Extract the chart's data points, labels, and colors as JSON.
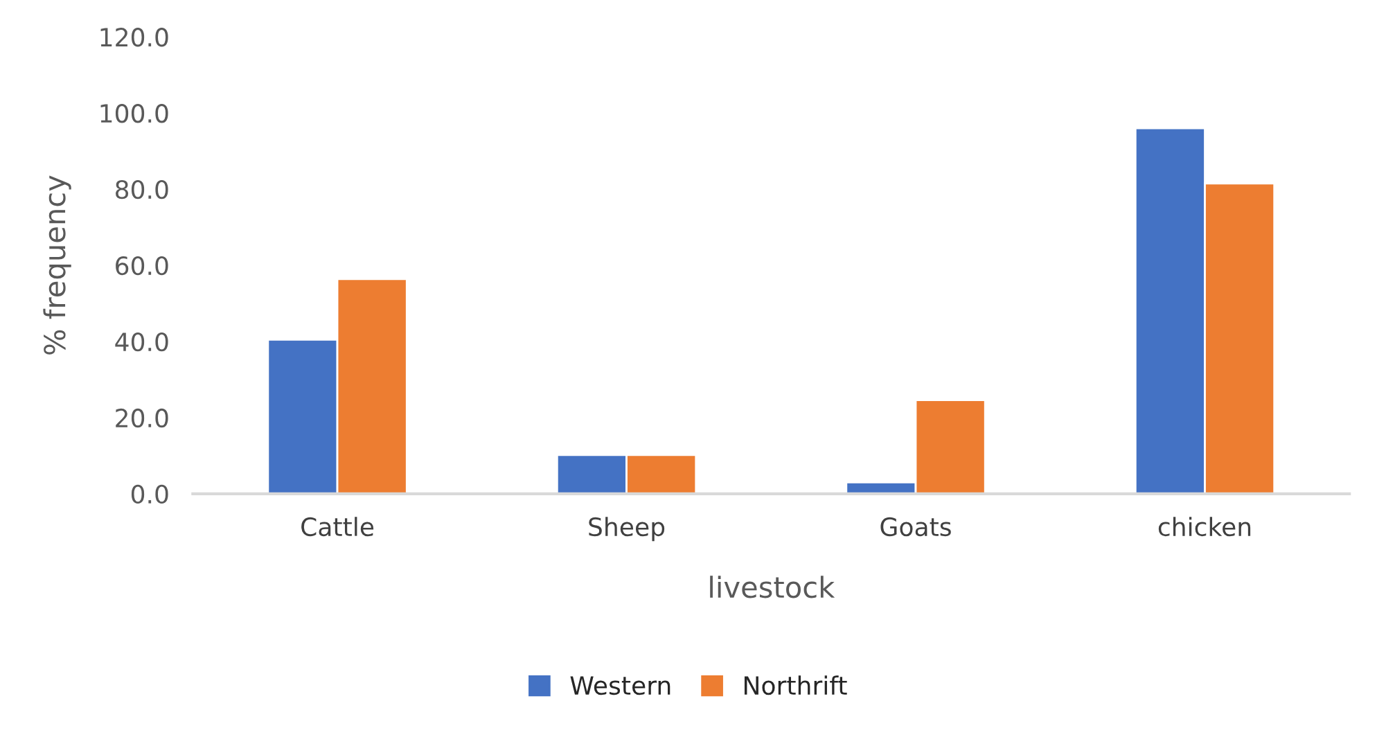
{
  "chart_data": {
    "type": "bar",
    "xlabel": "livestock",
    "ylabel": "% frequency",
    "categories": [
      "Cattle",
      "Sheep",
      "Goats",
      "chicken"
    ],
    "series": [
      {
        "name": "Western",
        "color": "#4472c4",
        "values": [
          40.5,
          10.2,
          3.0,
          96.0
        ]
      },
      {
        "name": "Northrift",
        "color": "#ed7d31",
        "values": [
          56.4,
          10.2,
          24.6,
          81.5
        ]
      }
    ],
    "ylim": [
      0,
      120
    ],
    "yticks": [
      {
        "value": 0,
        "label": "0.0"
      },
      {
        "value": 20,
        "label": "20.0"
      },
      {
        "value": 40,
        "label": "40.0"
      },
      {
        "value": 60,
        "label": "60.0"
      },
      {
        "value": 80,
        "label": "80.0"
      },
      {
        "value": 100,
        "label": "100.0"
      },
      {
        "value": 120,
        "label": "120.0"
      }
    ],
    "grid": false,
    "legend": "bottom"
  }
}
